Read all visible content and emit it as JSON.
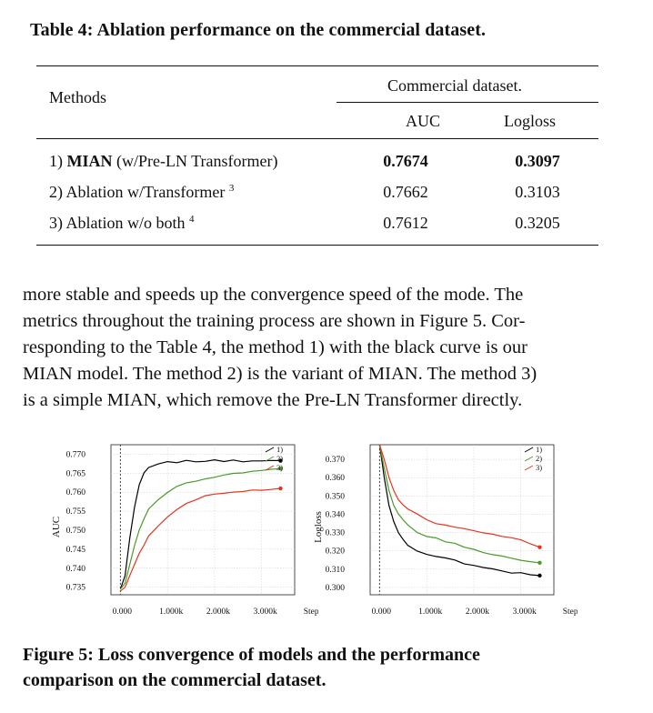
{
  "table": {
    "caption": "Table 4: Ablation performance on the commercial dataset.",
    "header_methods": "Methods",
    "header_group": "Commercial dataset.",
    "header_auc": "AUC",
    "header_logloss": "Logloss",
    "rows": [
      {
        "num": "1) ",
        "name_bold": "MIAN",
        "name": " (w/Pre-LN Transformer)",
        "sup": "",
        "auc": "0.7674",
        "logloss": "0.3097",
        "bold_values": true
      },
      {
        "num": "2) ",
        "name_bold": "",
        "name": "Ablation w/Transformer ",
        "sup": "3",
        "auc": "0.7662",
        "logloss": "0.3103",
        "bold_values": false
      },
      {
        "num": "3) ",
        "name_bold": "",
        "name": "Ablation w/o both ",
        "sup": "4",
        "auc": "0.7612",
        "logloss": "0.3205",
        "bold_values": false
      }
    ]
  },
  "paragraph": {
    "lines": [
      "more stable and speeds up the convergence speed of the mode. The",
      "metrics throughout the training process are shown in Figure 5. Cor-",
      "responding to the Table 4, the method 1) with the black curve is our",
      "MIAN model. The method 2) is the variant of MIAN. The method 3)",
      "is a simple MIAN, which remove the Pre-LN Transformer directly."
    ]
  },
  "figure": {
    "caption_lines": [
      "Figure 5: Loss convergence of models and the performance",
      "comparison on the commercial dataset."
    ]
  },
  "colors": {
    "series1": "#000000",
    "series2": "#4a9a2a",
    "series3": "#e8321e"
  },
  "chart_data": [
    {
      "type": "line",
      "title": "",
      "xlabel": "Steps",
      "ylabel": "AUC",
      "xlim": [
        -200,
        3700
      ],
      "ylim": [
        0.733,
        0.7725
      ],
      "xticks": [
        "0.000",
        "1.000k",
        "2.000k",
        "3.000k"
      ],
      "xtick_values": [
        0,
        1000,
        2000,
        3000
      ],
      "yticks": [
        "0.735",
        "0.740",
        "0.745",
        "0.750",
        "0.755",
        "0.760",
        "0.765",
        "0.770"
      ],
      "ytick_values": [
        0.735,
        0.74,
        0.745,
        0.75,
        0.755,
        0.76,
        0.765,
        0.77
      ],
      "grid": true,
      "legend": "top-right",
      "series": [
        {
          "name": "1)",
          "x": [
            0,
            100,
            200,
            300,
            400,
            500,
            600,
            800,
            1000,
            1200,
            1400,
            1600,
            1800,
            2000,
            2200,
            2400,
            2600,
            2800,
            3000,
            3200,
            3400
          ],
          "y": [
            0.7345,
            0.738,
            0.748,
            0.756,
            0.762,
            0.765,
            0.7665,
            0.7675,
            0.768,
            0.7678,
            0.7683,
            0.768,
            0.7682,
            0.7685,
            0.7681,
            0.7684,
            0.768,
            0.7683,
            0.7682,
            0.7684,
            0.7683
          ]
        },
        {
          "name": "2)",
          "x": [
            0,
            100,
            200,
            300,
            400,
            500,
            600,
            800,
            1000,
            1200,
            1400,
            1600,
            1800,
            2000,
            2200,
            2400,
            2600,
            2800,
            3000,
            3200,
            3400
          ],
          "y": [
            0.7345,
            0.736,
            0.741,
            0.746,
            0.75,
            0.753,
            0.7555,
            0.758,
            0.76,
            0.7615,
            0.7625,
            0.7628,
            0.7635,
            0.764,
            0.7645,
            0.765,
            0.765,
            0.7655,
            0.7658,
            0.766,
            0.7662
          ]
        },
        {
          "name": "3)",
          "x": [
            0,
            100,
            200,
            300,
            400,
            500,
            600,
            800,
            1000,
            1200,
            1400,
            1600,
            1800,
            2000,
            2200,
            2400,
            2600,
            2800,
            3000,
            3200,
            3400
          ],
          "y": [
            0.734,
            0.735,
            0.738,
            0.741,
            0.744,
            0.746,
            0.7485,
            0.751,
            0.7535,
            0.7555,
            0.757,
            0.758,
            0.759,
            0.7595,
            0.7598,
            0.76,
            0.7602,
            0.7605,
            0.7605,
            0.7608,
            0.761
          ]
        }
      ]
    },
    {
      "type": "line",
      "title": "",
      "xlabel": "Steps",
      "ylabel": "Logloss",
      "xlim": [
        -200,
        3700
      ],
      "ylim": [
        0.296,
        0.378
      ],
      "xticks": [
        "0.000",
        "1.000k",
        "2.000k",
        "3.000k"
      ],
      "xtick_values": [
        0,
        1000,
        2000,
        3000
      ],
      "yticks": [
        "0.300",
        "0.310",
        "0.320",
        "0.330",
        "0.340",
        "0.350",
        "0.360",
        "0.370"
      ],
      "ytick_values": [
        0.3,
        0.31,
        0.32,
        0.33,
        0.34,
        0.35,
        0.36,
        0.37
      ],
      "grid": true,
      "legend": "top-right",
      "series": [
        {
          "name": "1)",
          "x": [
            0,
            100,
            200,
            300,
            400,
            500,
            600,
            800,
            1000,
            1200,
            1400,
            1600,
            1800,
            2000,
            2200,
            2400,
            2600,
            2800,
            3000,
            3200,
            3400
          ],
          "y": [
            0.378,
            0.36,
            0.345,
            0.336,
            0.33,
            0.326,
            0.323,
            0.32,
            0.318,
            0.317,
            0.316,
            0.315,
            0.313,
            0.312,
            0.311,
            0.31,
            0.309,
            0.308,
            0.308,
            0.307,
            0.3065
          ]
        },
        {
          "name": "2)",
          "x": [
            0,
            100,
            200,
            300,
            400,
            500,
            600,
            800,
            1000,
            1200,
            1400,
            1600,
            1800,
            2000,
            2200,
            2400,
            2600,
            2800,
            3000,
            3200,
            3400
          ],
          "y": [
            0.378,
            0.365,
            0.353,
            0.345,
            0.34,
            0.337,
            0.334,
            0.33,
            0.328,
            0.327,
            0.325,
            0.324,
            0.322,
            0.321,
            0.319,
            0.318,
            0.317,
            0.316,
            0.315,
            0.314,
            0.3135
          ]
        },
        {
          "name": "3)",
          "x": [
            0,
            100,
            200,
            300,
            400,
            500,
            600,
            800,
            1000,
            1200,
            1400,
            1600,
            1800,
            2000,
            2200,
            2400,
            2600,
            2800,
            3000,
            3200,
            3400
          ],
          "y": [
            0.378,
            0.37,
            0.36,
            0.353,
            0.348,
            0.345,
            0.343,
            0.34,
            0.337,
            0.335,
            0.334,
            0.333,
            0.332,
            0.331,
            0.33,
            0.329,
            0.328,
            0.327,
            0.326,
            0.324,
            0.322
          ]
        }
      ]
    }
  ]
}
